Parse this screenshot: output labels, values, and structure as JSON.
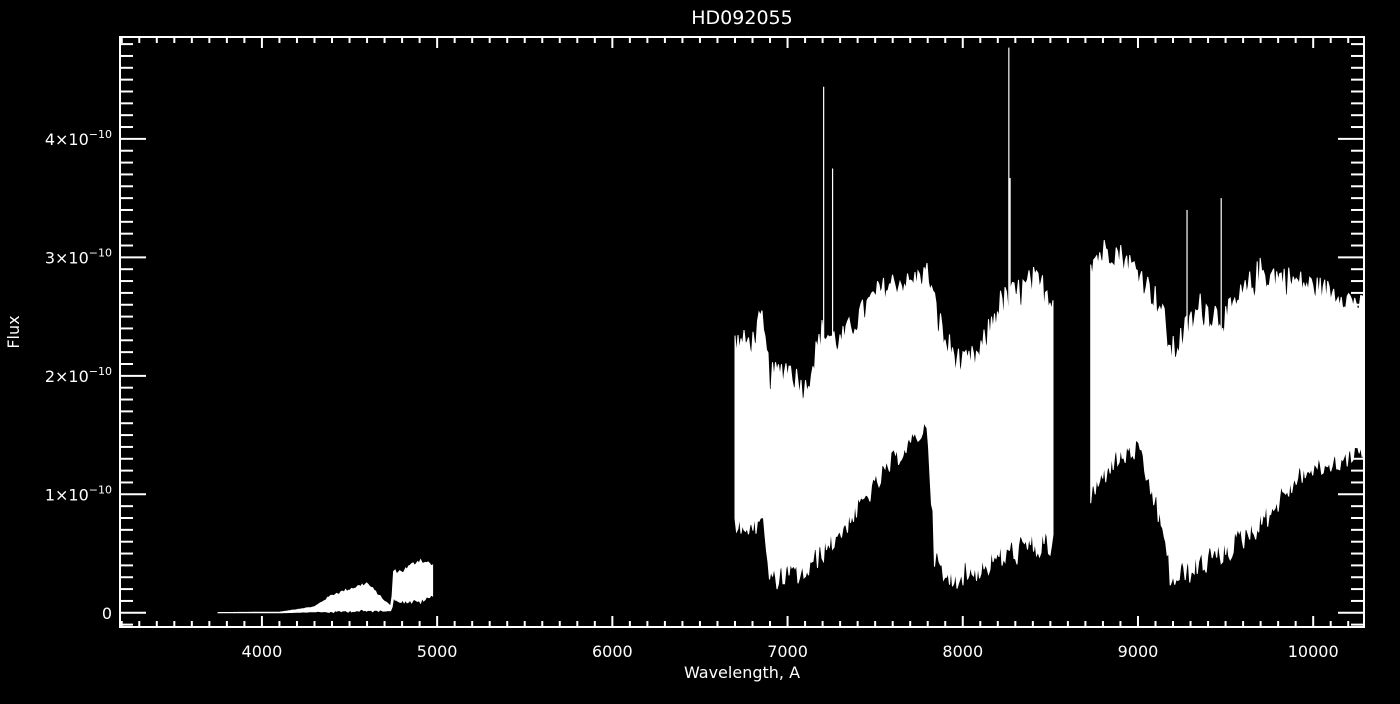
{
  "chart_data": {
    "type": "line",
    "title": "HD092055",
    "xlabel": "Wavelength, A",
    "ylabel": "Flux",
    "xlim": [
      3190,
      10290
    ],
    "ylim": [
      -1.2e-11,
      4.86e-10
    ],
    "x_ticks": [
      4000,
      5000,
      6000,
      7000,
      8000,
      9000,
      10000
    ],
    "x_tick_labels": [
      "4000",
      "5000",
      "6000",
      "7000",
      "8000",
      "9000",
      "10000"
    ],
    "y_ticks": [
      0,
      1e-10,
      2e-10,
      3e-10,
      4e-10
    ],
    "y_tick_labels": [
      {
        "mantissa": "0",
        "exponent": ""
      },
      {
        "mantissa": "1×10",
        "exponent": "−10"
      },
      {
        "mantissa": "2×10",
        "exponent": "−10"
      },
      {
        "mantissa": "3×10",
        "exponent": "−10"
      },
      {
        "mantissa": "4×10",
        "exponent": "−10"
      }
    ],
    "x_minor_step": 100,
    "y_minor_step": 1e-11,
    "grid": false,
    "colors": {
      "background": "#000000",
      "foreground": "#ffffff"
    },
    "segments": [
      {
        "wavelength": [
          3750,
          4100,
          4300,
          4400,
          4500,
          4600,
          4700,
          4740,
          4750,
          4800,
          4900,
          4980
        ],
        "flux_upper": [
          2e-13,
          5e-13,
          5e-12,
          1.5e-11,
          2e-11,
          2.5e-11,
          1e-11,
          5e-12,
          3.5e-11,
          3.5e-11,
          4.5e-11,
          4e-11
        ],
        "flux_lower": [
          0,
          0,
          1e-12,
          1e-12,
          2e-12,
          2e-12,
          2e-12,
          2e-12,
          1.2e-11,
          1e-11,
          1e-11,
          1.5e-11
        ]
      },
      {
        "wavelength": [
          6700,
          6800,
          6850,
          6900,
          7000,
          7100,
          7200,
          7300,
          7400,
          7500,
          7600,
          7700,
          7800,
          7840,
          7900,
          8000,
          8100,
          8200,
          8300,
          8400,
          8520
        ],
        "flux_upper": [
          2.3e-10,
          2.3e-10,
          2.5e-10,
          2e-10,
          2.1e-10,
          1.9e-10,
          2.4e-10,
          2.3e-10,
          2.5e-10,
          2.7e-10,
          2.8e-10,
          2.8e-10,
          2.9e-10,
          2.6e-10,
          2.3e-10,
          2.1e-10,
          2.2e-10,
          2.6e-10,
          2.7e-10,
          2.8e-10,
          2.7e-10
        ],
        "flux_lower": [
          8e-11,
          7e-11,
          9e-11,
          3e-11,
          3.5e-11,
          3.5e-11,
          5.5e-11,
          7e-11,
          9e-11,
          1.1e-10,
          1.3e-10,
          1.45e-10,
          1.6e-10,
          5e-11,
          3e-11,
          3.5e-11,
          4e-11,
          5e-11,
          5.5e-11,
          6e-11,
          6e-11
        ]
      },
      {
        "wavelength": [
          8730,
          8846,
          9000,
          9131,
          9189,
          9360,
          9503,
          9703,
          9931,
          10160,
          10290
        ],
        "flux_upper": [
          3e-10,
          3.1e-10,
          2.9e-10,
          2.6e-10,
          2.2e-10,
          2.6e-10,
          2.5e-10,
          2.9e-10,
          2.8e-10,
          2.7e-10,
          2.6e-10
        ],
        "flux_lower": [
          1e-10,
          1.3e-10,
          1.4e-10,
          8e-11,
          3e-11,
          4.5e-11,
          5.5e-11,
          8e-11,
          1.2e-10,
          1.3e-10,
          1.4e-10
        ]
      }
    ],
    "spikes": [
      {
        "wavelength": 7206,
        "flux": 4.44e-10
      },
      {
        "wavelength": 7257,
        "flux": 3.75e-10
      },
      {
        "wavelength": 8263,
        "flux": 4.77e-10
      },
      {
        "wavelength": 8270,
        "flux": 3.67e-10
      },
      {
        "wavelength": 9280,
        "flux": 3.4e-10
      },
      {
        "wavelength": 9475,
        "flux": 3.5e-10
      }
    ]
  }
}
